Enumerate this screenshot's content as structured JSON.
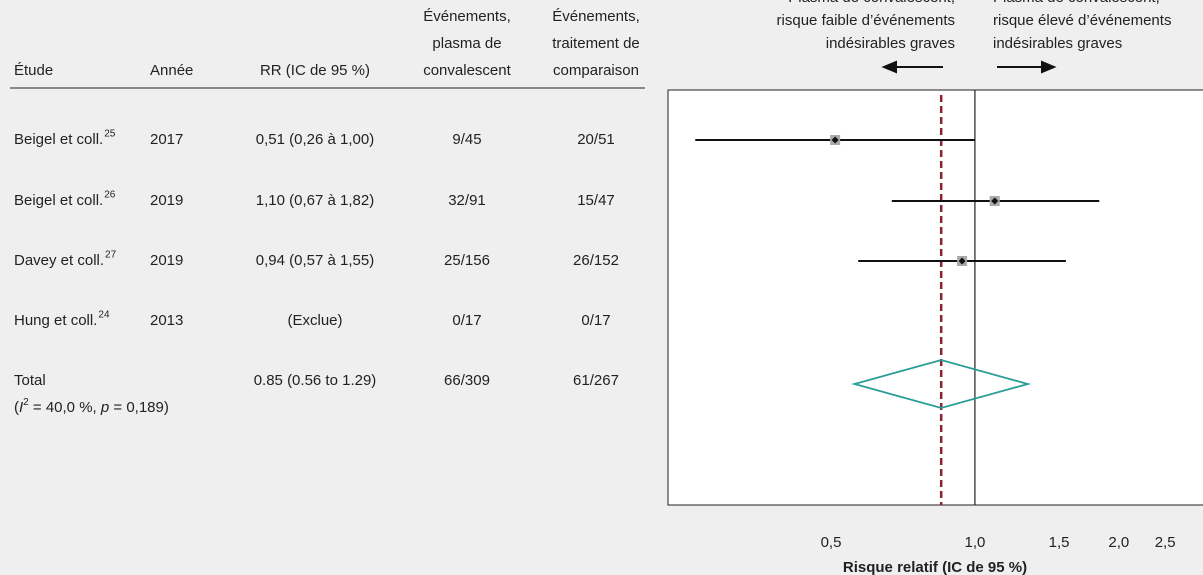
{
  "chart_data": {
    "type": "forest",
    "columns": [
      "Étude",
      "Année",
      "RR (IC de 95 %)",
      [
        "Événements,",
        "plasma de",
        "convalescent"
      ],
      [
        "Événements,",
        "traitement de",
        "comparaison"
      ]
    ],
    "favors_left": [
      "Plasma de convalescent,",
      "risque faible d’événements",
      "indésirables graves"
    ],
    "favors_right": [
      "Plasma de convalescent,",
      "risque élevé d’événements",
      "indésirables graves"
    ],
    "studies": [
      {
        "name": "Beigel et coll.",
        "ref": "25",
        "year": "2017",
        "ci_label": "0,51 (0,26 à 1,00)",
        "events_cp": "9/45",
        "events_comp": "20/51",
        "rr": 0.51,
        "lower": 0.26,
        "upper": 1.0
      },
      {
        "name": "Beigel et coll.",
        "ref": "26",
        "year": "2019",
        "ci_label": "1,10 (0,67 à 1,82)",
        "events_cp": "32/91",
        "events_comp": "15/47",
        "rr": 1.1,
        "lower": 0.67,
        "upper": 1.82
      },
      {
        "name": "Davey et coll.",
        "ref": "27",
        "year": "2019",
        "ci_label": "0,94 (0,57 à 1,55)",
        "events_cp": "25/156",
        "events_comp": "26/152",
        "rr": 0.94,
        "lower": 0.57,
        "upper": 1.55
      },
      {
        "name": "Hung et coll.",
        "ref": "24",
        "year": "2013",
        "ci_label": "(Exclue)",
        "events_cp": "0/17",
        "events_comp": "0/17",
        "rr": null,
        "lower": null,
        "upper": null
      }
    ],
    "total": {
      "name": "Total",
      "heterogeneity": [
        "(",
        "I",
        "2",
        " = 40,0 %, ",
        "p",
        " = 0,189)"
      ],
      "ci_label": "0.85 (0.56 to 1.29)",
      "events_cp": "66/309",
      "events_comp": "61/267",
      "rr": 0.85,
      "lower": 0.56,
      "upper": 1.29
    },
    "x_label": "Risque relatif (IC de 95 %)",
    "log_x": true,
    "xlim": [
      0.228,
      3.0
    ],
    "xticks": [
      {
        "value": 0.5,
        "label": "0,5"
      },
      {
        "value": 1,
        "label": "1,0"
      },
      {
        "value": 1.5,
        "label": "1,5"
      },
      {
        "value": 2,
        "label": "2,0"
      },
      {
        "value": 2.5,
        "label": "2,5"
      }
    ],
    "diamond_color": "#2a9d96",
    "pooled_line_color": "#8b2331"
  }
}
